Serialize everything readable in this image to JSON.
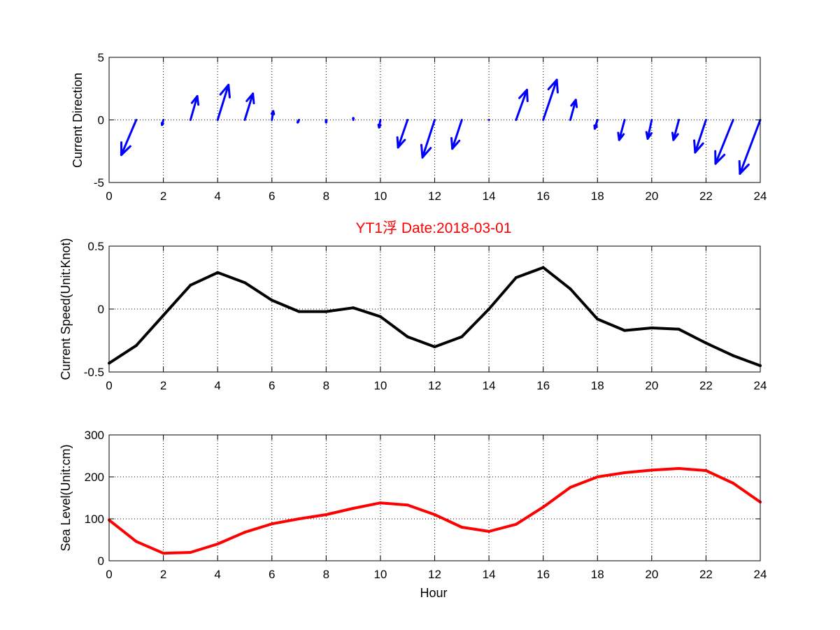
{
  "title": "YT1浮    Date:2018-03-01",
  "colors": {
    "direction": "#0000ff",
    "speed": "#000000",
    "sea_level": "#ff0000",
    "title": "#ff0000"
  },
  "chart_data": [
    {
      "type": "quiver",
      "ylabel": "Current Direction",
      "xlabel": "",
      "xlim": [
        0,
        24
      ],
      "ylim": [
        -5,
        5
      ],
      "xticks": [
        "0",
        "2",
        "4",
        "6",
        "8",
        "10",
        "12",
        "14",
        "16",
        "18",
        "20",
        "22",
        "24"
      ],
      "yticks": [
        "-5",
        "0",
        "5"
      ],
      "grid": true,
      "x": [
        1,
        2,
        3,
        4,
        5,
        6,
        7,
        8,
        9,
        10,
        11,
        12,
        13,
        14,
        15,
        16,
        17,
        18,
        19,
        20,
        21,
        22,
        23,
        24
      ],
      "u": [
        -0.55,
        -0.05,
        0.25,
        0.4,
        0.3,
        0.05,
        -0.05,
        0,
        0,
        -0.05,
        -0.35,
        -0.45,
        -0.35,
        0,
        0.4,
        0.5,
        0.2,
        -0.1,
        -0.2,
        -0.15,
        -0.2,
        -0.4,
        -0.65,
        -0.75
      ],
      "v": [
        -2.8,
        -0.4,
        1.9,
        2.8,
        2.1,
        0.7,
        -0.2,
        -0.2,
        0.15,
        -0.6,
        -2.2,
        -3.0,
        -2.3,
        0,
        2.4,
        3.2,
        1.6,
        -0.7,
        -1.6,
        -1.5,
        -1.6,
        -2.6,
        -3.5,
        -4.3
      ]
    },
    {
      "type": "line",
      "ylabel": "Current Speed(Unit:Knot)",
      "xlabel": "",
      "xlim": [
        0,
        24
      ],
      "ylim": [
        -0.5,
        0.5
      ],
      "xticks": [
        "0",
        "2",
        "4",
        "6",
        "8",
        "10",
        "12",
        "14",
        "16",
        "18",
        "20",
        "22",
        "24"
      ],
      "yticks": [
        "-0.5",
        "0",
        "0.5"
      ],
      "grid": true,
      "x": [
        0,
        1,
        2,
        3,
        4,
        5,
        6,
        7,
        8,
        9,
        10,
        11,
        12,
        13,
        14,
        15,
        16,
        17,
        18,
        19,
        20,
        21,
        22,
        23,
        24
      ],
      "values": [
        -0.43,
        -0.29,
        -0.05,
        0.19,
        0.29,
        0.21,
        0.07,
        -0.02,
        -0.02,
        0.01,
        -0.06,
        -0.22,
        -0.3,
        -0.22,
        0.0,
        0.25,
        0.33,
        0.16,
        -0.08,
        -0.17,
        -0.15,
        -0.16,
        -0.27,
        -0.37,
        -0.45
      ]
    },
    {
      "type": "line",
      "ylabel": "Sea Level(Unit:cm)",
      "xlabel": "Hour",
      "xlim": [
        0,
        24
      ],
      "ylim": [
        0,
        300
      ],
      "xticks": [
        "0",
        "2",
        "4",
        "6",
        "8",
        "10",
        "12",
        "14",
        "16",
        "18",
        "20",
        "22",
        "24"
      ],
      "yticks": [
        "0",
        "100",
        "200",
        "300"
      ],
      "grid": true,
      "x": [
        0,
        1,
        2,
        3,
        4,
        5,
        6,
        7,
        8,
        9,
        10,
        11,
        12,
        13,
        14,
        15,
        16,
        17,
        18,
        19,
        20,
        21,
        22,
        23,
        24
      ],
      "values": [
        97,
        46,
        18,
        20,
        40,
        68,
        88,
        100,
        110,
        125,
        138,
        133,
        110,
        80,
        70,
        87,
        128,
        175,
        200,
        210,
        216,
        220,
        215,
        185,
        140
      ]
    }
  ]
}
